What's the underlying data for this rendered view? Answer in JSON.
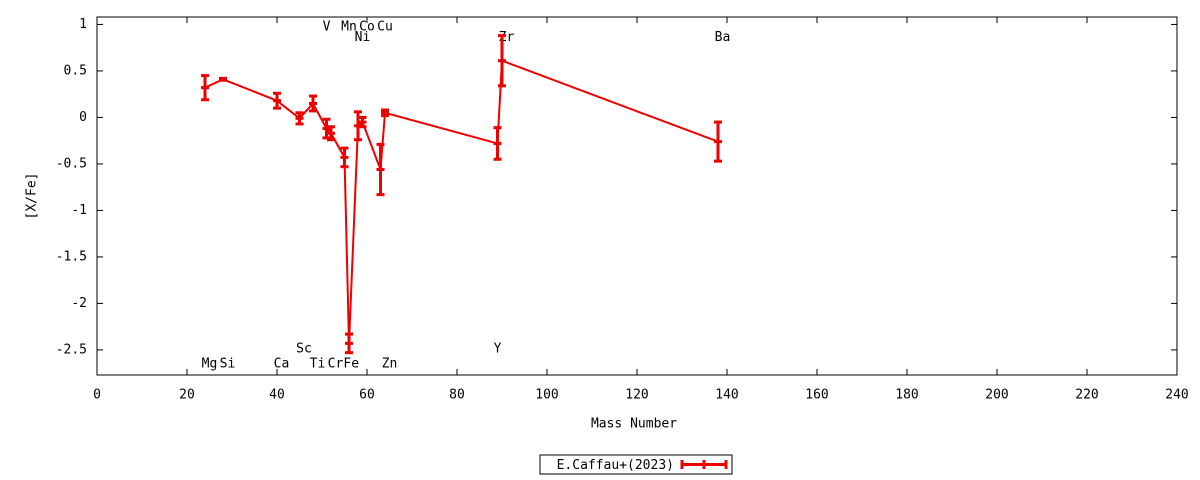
{
  "chart_data": {
    "type": "line",
    "xlabel": "Mass Number",
    "ylabel": "[X/Fe]",
    "xlim": [
      0,
      240
    ],
    "ylim": [
      -2.77,
      1.08
    ],
    "xticks": [
      0,
      20,
      40,
      60,
      80,
      100,
      120,
      140,
      160,
      180,
      200,
      220,
      240
    ],
    "yticks": [
      1,
      0.5,
      0,
      -0.5,
      -1,
      -1.5,
      -2,
      -2.5
    ],
    "grid": false,
    "legend": "bottom",
    "series": [
      {
        "name": "E.Caffau+(2023)",
        "color": "#ee0000",
        "x": [
          24,
          28,
          40,
          45,
          48,
          51,
          52,
          55,
          56,
          58,
          59,
          63,
          64,
          89,
          90,
          138
        ],
        "values": [
          0.32,
          0.41,
          0.18,
          -0.01,
          0.15,
          -0.12,
          -0.17,
          -0.43,
          -2.43,
          -0.09,
          -0.05,
          -0.56,
          0.05,
          -0.28,
          0.61,
          -0.26
        ],
        "errors": [
          0.13,
          0.01,
          0.08,
          0.06,
          0.08,
          0.1,
          0.07,
          0.1,
          0.1,
          0.15,
          0.05,
          0.27,
          0.03,
          0.17,
          0.27,
          0.21
        ]
      }
    ],
    "annotations": [
      {
        "text": "Mg",
        "x": 25,
        "y": -2.65
      },
      {
        "text": "Si",
        "x": 29,
        "y": -2.65
      },
      {
        "text": "Ca",
        "x": 41,
        "y": -2.65
      },
      {
        "text": "Sc",
        "x": 46,
        "y": -2.49
      },
      {
        "text": "Ti",
        "x": 49,
        "y": -2.65
      },
      {
        "text": "V",
        "x": 51,
        "y": 0.97
      },
      {
        "text": "Cr",
        "x": 53,
        "y": -2.65
      },
      {
        "text": "Mn",
        "x": 56,
        "y": 0.97
      },
      {
        "text": "Fe",
        "x": 56.5,
        "y": -2.65
      },
      {
        "text": "Ni",
        "x": 59,
        "y": 0.86
      },
      {
        "text": "Co",
        "x": 60,
        "y": 0.97
      },
      {
        "text": "Cu",
        "x": 64,
        "y": 0.97
      },
      {
        "text": "Zn",
        "x": 65,
        "y": -2.65
      },
      {
        "text": "Y",
        "x": 89,
        "y": -2.49
      },
      {
        "text": "Zr",
        "x": 91,
        "y": 0.86
      },
      {
        "text": "Ba",
        "x": 139,
        "y": 0.86
      }
    ]
  }
}
